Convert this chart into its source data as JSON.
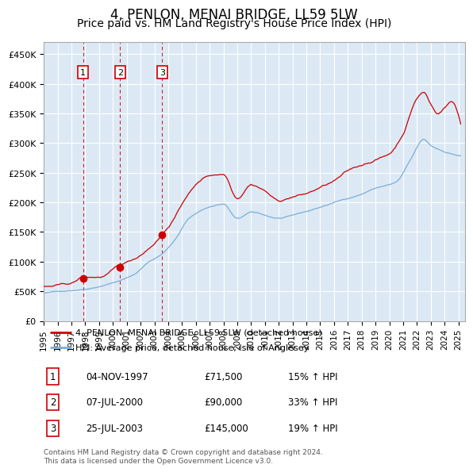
{
  "title": "4, PENLON, MENAI BRIDGE, LL59 5LW",
  "subtitle": "Price paid vs. HM Land Registry's House Price Index (HPI)",
  "title_fontsize": 12,
  "subtitle_fontsize": 10,
  "background_color": "#dce9f5",
  "plot_bg_color": "#dce9f5",
  "fig_bg_color": "#ffffff",
  "hpi_color": "#7aaed6",
  "property_color": "#cc0000",
  "ylim": [
    0,
    470000
  ],
  "yticks": [
    0,
    50000,
    100000,
    150000,
    200000,
    250000,
    300000,
    350000,
    400000,
    450000
  ],
  "ytick_labels": [
    "£0",
    "£50K",
    "£100K",
    "£150K",
    "£200K",
    "£250K",
    "£300K",
    "£350K",
    "£400K",
    "£450K"
  ],
  "sale_dates": [
    "1997-11-04",
    "2000-07-07",
    "2003-07-25"
  ],
  "sale_prices": [
    71500,
    90000,
    145000
  ],
  "sale_labels": [
    "1",
    "2",
    "3"
  ],
  "legend_property": "4, PENLON, MENAI BRIDGE, LL59 5LW (detached house)",
  "legend_hpi": "HPI: Average price, detached house, Isle of Anglesey",
  "table_rows": [
    [
      "1",
      "04-NOV-1997",
      "£71,500",
      "15% ↑ HPI"
    ],
    [
      "2",
      "07-JUL-2000",
      "£90,000",
      "33% ↑ HPI"
    ],
    [
      "3",
      "25-JUL-2003",
      "£145,000",
      "19% ↑ HPI"
    ]
  ],
  "copyright_text": "Contains HM Land Registry data © Crown copyright and database right 2024.\nThis data is licensed under the Open Government Licence v3.0.",
  "grid_color": "#ffffff",
  "vline_color": "#cc0000",
  "box_color": "#cc0000",
  "xstart_year": 1995,
  "xend_year": 2025
}
